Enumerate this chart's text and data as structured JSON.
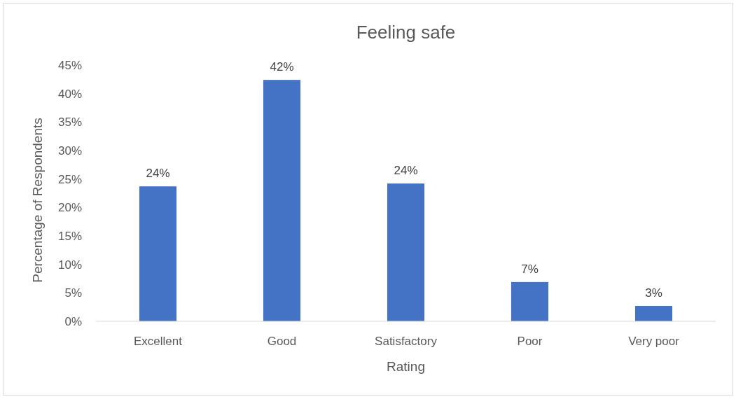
{
  "chart_data": {
    "type": "bar",
    "title": "Feeling safe",
    "xlabel": "Rating",
    "ylabel": "Percentage of Respondents",
    "categories": [
      "Excellent",
      "Good",
      "Satisfactory",
      "Poor",
      "Very poor"
    ],
    "values": [
      23.7,
      42.4,
      24.2,
      6.9,
      2.7
    ],
    "value_labels": [
      "24%",
      "42%",
      "24%",
      "7%",
      "3%"
    ],
    "color": "#4472c4",
    "ylim": [
      0,
      45
    ],
    "yticks": [
      {
        "value": 0,
        "label": "0%"
      },
      {
        "value": 5,
        "label": "5%"
      },
      {
        "value": 10,
        "label": "10%"
      },
      {
        "value": 15,
        "label": "15%"
      },
      {
        "value": 20,
        "label": "20%"
      },
      {
        "value": 25,
        "label": "25%"
      },
      {
        "value": 30,
        "label": "30%"
      },
      {
        "value": 35,
        "label": "35%"
      },
      {
        "value": 40,
        "label": "40%"
      },
      {
        "value": 45,
        "label": "45%"
      }
    ],
    "grid": false
  }
}
